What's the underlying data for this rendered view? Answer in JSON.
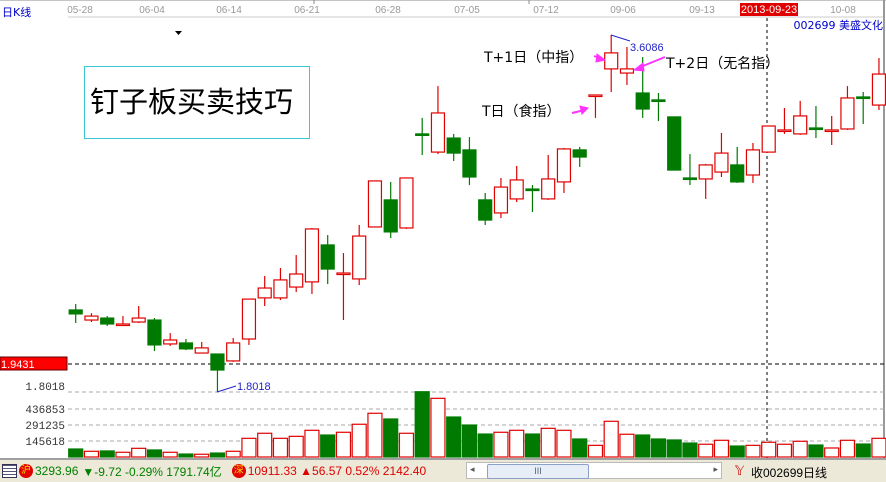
{
  "header": {
    "period_label": "日K线",
    "stock_label": "002699 美盛文化",
    "selected_date": "2013-09-23",
    "date_labels": [
      "05-28",
      "06-04",
      "06-14",
      "06-21",
      "06-28",
      "07-05",
      "07-12",
      "09-06",
      "09-13",
      "10-08"
    ]
  },
  "title_box": "钉子板买卖技巧",
  "annotations": {
    "t_day": "T日（食指）",
    "t1_day": "T+1日（中指）",
    "t2_day": "T+2日（无名指）",
    "high_label": "3.6086",
    "low_label": "1.8018"
  },
  "axis": {
    "current_price": "1.9431",
    "price_low": "1.8018",
    "volume_ticks": [
      "436853",
      "291235",
      "145618"
    ]
  },
  "colors": {
    "up": "#e00000",
    "down": "#007a00",
    "annotation_arrow": "#ff33ff",
    "label_blue": "#2222cc"
  },
  "chart_data": {
    "type": "candlestick",
    "fields": [
      "open",
      "high",
      "low",
      "close",
      "volume"
    ],
    "candles": [
      [
        2.217,
        2.247,
        2.151,
        2.197,
        72800
      ],
      [
        2.166,
        2.201,
        2.156,
        2.186,
        52000
      ],
      [
        2.176,
        2.186,
        2.136,
        2.146,
        55000
      ],
      [
        2.146,
        2.186,
        2.141,
        2.146,
        43000
      ],
      [
        2.156,
        2.237,
        2.151,
        2.176,
        79000
      ],
      [
        2.166,
        2.176,
        2.009,
        2.04,
        64000
      ],
      [
        2.045,
        2.1,
        2.035,
        2.065,
        43000
      ],
      [
        2.05,
        2.07,
        2.014,
        2.02,
        27000
      ],
      [
        1.999,
        2.055,
        1.999,
        2.025,
        25000
      ],
      [
        1.994,
        1.994,
        1.802,
        1.913,
        36000
      ],
      [
        1.959,
        2.075,
        1.954,
        2.05,
        52000
      ],
      [
        2.07,
        2.272,
        2.04,
        2.272,
        170000
      ],
      [
        2.278,
        2.389,
        2.237,
        2.328,
        216000
      ],
      [
        2.278,
        2.429,
        2.267,
        2.369,
        170000
      ],
      [
        2.333,
        2.495,
        2.308,
        2.399,
        188000
      ],
      [
        2.359,
        2.632,
        2.298,
        2.627,
        243000
      ],
      [
        2.546,
        2.596,
        2.348,
        2.424,
        200000
      ],
      [
        2.404,
        2.505,
        2.166,
        2.404,
        225000
      ],
      [
        2.374,
        2.647,
        2.343,
        2.591,
        298000
      ],
      [
        2.637,
        2.87,
        2.637,
        2.87,
        398000
      ],
      [
        2.774,
        2.865,
        2.581,
        2.612,
        346000
      ],
      [
        2.632,
        2.885,
        2.627,
        2.885,
        216000
      ],
      [
        3.108,
        3.189,
        3.001,
        3.108,
        594000
      ],
      [
        3.016,
        3.35,
        3.006,
        3.214,
        534000
      ],
      [
        3.087,
        3.108,
        2.971,
        3.011,
        364000
      ],
      [
        3.027,
        3.092,
        2.849,
        2.89,
        291000
      ],
      [
        2.774,
        2.809,
        2.647,
        2.672,
        209000
      ],
      [
        2.708,
        2.885,
        2.682,
        2.839,
        225000
      ],
      [
        2.779,
        2.946,
        2.763,
        2.875,
        243000
      ],
      [
        2.829,
        2.849,
        2.713,
        2.829,
        209000
      ],
      [
        2.779,
        3.001,
        2.774,
        2.88,
        261000
      ],
      [
        2.865,
        3.037,
        2.809,
        3.032,
        243000
      ],
      [
        3.027,
        3.042,
        2.941,
        2.991,
        164000
      ],
      [
        3.305,
        3.305,
        3.189,
        3.305,
        106000
      ],
      [
        3.437,
        3.609,
        3.32,
        3.518,
        325000
      ],
      [
        3.416,
        3.548,
        3.356,
        3.437,
        207000
      ],
      [
        3.315,
        3.497,
        3.189,
        3.234,
        200000
      ],
      [
        3.28,
        3.315,
        3.173,
        3.28,
        164000
      ],
      [
        3.194,
        3.194,
        2.925,
        2.925,
        155000
      ],
      [
        2.885,
        3.006,
        2.849,
        2.885,
        127000
      ],
      [
        2.88,
        2.956,
        2.779,
        2.951,
        116000
      ],
      [
        2.915,
        3.113,
        2.89,
        3.011,
        152000
      ],
      [
        2.951,
        3.042,
        2.86,
        2.865,
        100000
      ],
      [
        2.9,
        3.062,
        2.86,
        3.027,
        106000
      ],
      [
        3.016,
        3.148,
        3.016,
        3.148,
        134000
      ],
      [
        3.128,
        3.239,
        3.108,
        3.128,
        116000
      ],
      [
        3.108,
        3.275,
        3.103,
        3.199,
        143000
      ],
      [
        3.138,
        3.249,
        3.087,
        3.138,
        109000
      ],
      [
        3.128,
        3.199,
        3.052,
        3.128,
        82000
      ],
      [
        3.133,
        3.35,
        3.128,
        3.29,
        152000
      ],
      [
        3.295,
        3.32,
        3.158,
        3.295,
        118000
      ],
      [
        3.254,
        3.492,
        3.229,
        3.411,
        170000
      ]
    ],
    "up_flags": [
      false,
      true,
      false,
      true,
      true,
      false,
      true,
      false,
      true,
      false,
      true,
      true,
      true,
      true,
      true,
      true,
      false,
      true,
      true,
      true,
      false,
      true,
      false,
      true,
      false,
      false,
      false,
      true,
      true,
      false,
      true,
      true,
      false,
      true,
      true,
      true,
      false,
      false,
      false,
      false,
      true,
      true,
      false,
      true,
      true,
      true,
      true,
      false,
      true,
      true,
      false,
      true
    ]
  },
  "status_bar": {
    "sh_icon": "沪",
    "sh_index": "3293.96",
    "sh_change": "▼-9.72 -0.29% 1791.74亿",
    "sz_icon": "深",
    "sz_index": "10911.33 ▲56.57 0.52% 2142.40",
    "scroll_thumb": "III",
    "right_label": "收002699日线"
  }
}
